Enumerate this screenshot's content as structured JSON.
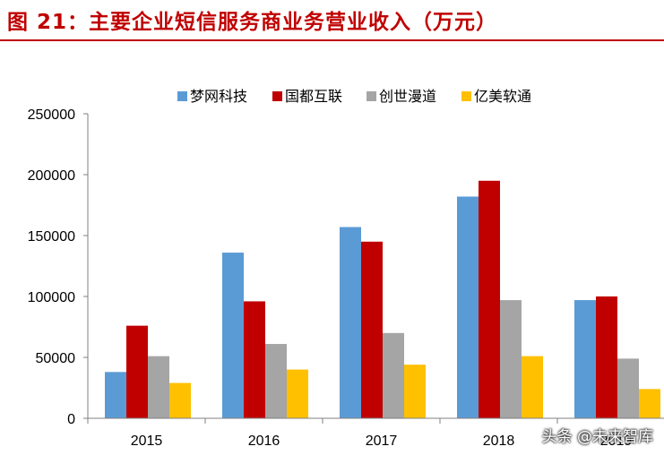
{
  "title": "图 21：主要企业短信服务商业务营业收入（万元）",
  "watermark": "头条 @未来智库",
  "chart_data": {
    "type": "bar",
    "title": "",
    "xlabel": "",
    "ylabel": "",
    "categories": [
      "2015",
      "2016",
      "2017",
      "2018",
      "2019"
    ],
    "series": [
      {
        "name": "梦网科技",
        "color": "#5b9bd5",
        "values": [
          38000,
          136000,
          157000,
          182000,
          97000
        ]
      },
      {
        "name": "国都互联",
        "color": "#c00000",
        "values": [
          76000,
          96000,
          145000,
          195000,
          100000
        ]
      },
      {
        "name": "创世漫道",
        "color": "#a5a5a5",
        "values": [
          51000,
          61000,
          70000,
          97000,
          49000
        ]
      },
      {
        "name": "亿美软通",
        "color": "#ffc000",
        "values": [
          29000,
          40000,
          44000,
          51000,
          24000
        ]
      }
    ],
    "ylim": [
      0,
      250000
    ],
    "yticks": [
      "0",
      "50000",
      "100000",
      "150000",
      "200000",
      "250000"
    ],
    "grid": false,
    "legend_position": "top"
  }
}
